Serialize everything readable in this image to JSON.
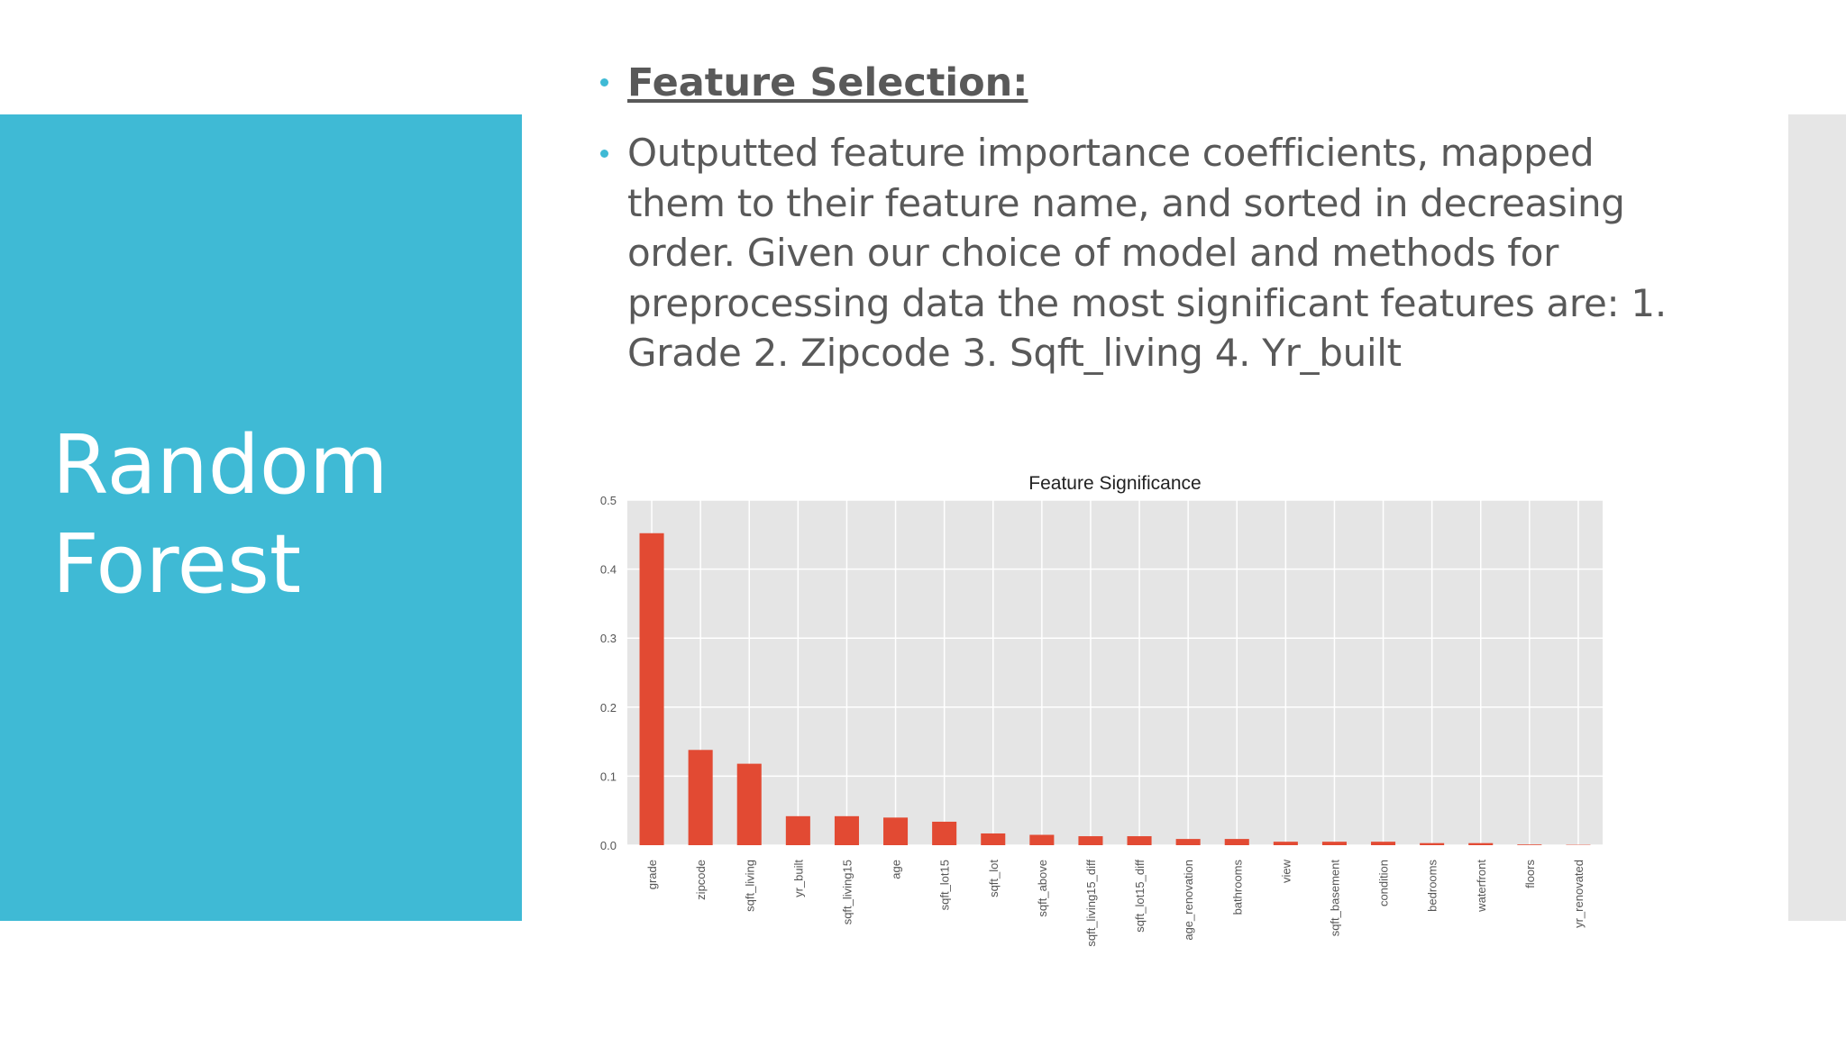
{
  "slide": {
    "title": "Random Forest",
    "bullets": [
      "Feature Selection:",
      "Outputted feature importance coefficients, mapped them to their feature name, and sorted in decreasing order. Given our choice of model and methods for preprocessing data the most significant features are: 1. Grade 2. Zipcode 3. Sqft_living 4. Yr_built"
    ]
  },
  "colors": {
    "panel": "#3fbad5",
    "bar": "#e24a33",
    "plot_bg": "#e5e5e5",
    "text": "#595959"
  },
  "chart_data": {
    "type": "bar",
    "title": "Feature Significance",
    "xlabel": "",
    "ylabel": "",
    "ylim": [
      0,
      0.5
    ],
    "yticks": [
      "0.0",
      "0.1",
      "0.2",
      "0.3",
      "0.4",
      "0.5"
    ],
    "grid": true,
    "categories": [
      "grade",
      "zipcode",
      "sqft_living",
      "yr_built",
      "sqft_living15",
      "age",
      "sqft_lot15",
      "sqft_lot",
      "sqft_above",
      "sqft_living15_diff",
      "sqft_lot15_diff",
      "age_renovation",
      "bathrooms",
      "view",
      "sqft_basement",
      "condition",
      "bedrooms",
      "waterfront",
      "floors",
      "yr_renovated"
    ],
    "values": [
      0.452,
      0.138,
      0.118,
      0.042,
      0.042,
      0.04,
      0.034,
      0.017,
      0.015,
      0.013,
      0.013,
      0.009,
      0.009,
      0.005,
      0.005,
      0.005,
      0.003,
      0.003,
      0.001,
      0.0005
    ]
  }
}
